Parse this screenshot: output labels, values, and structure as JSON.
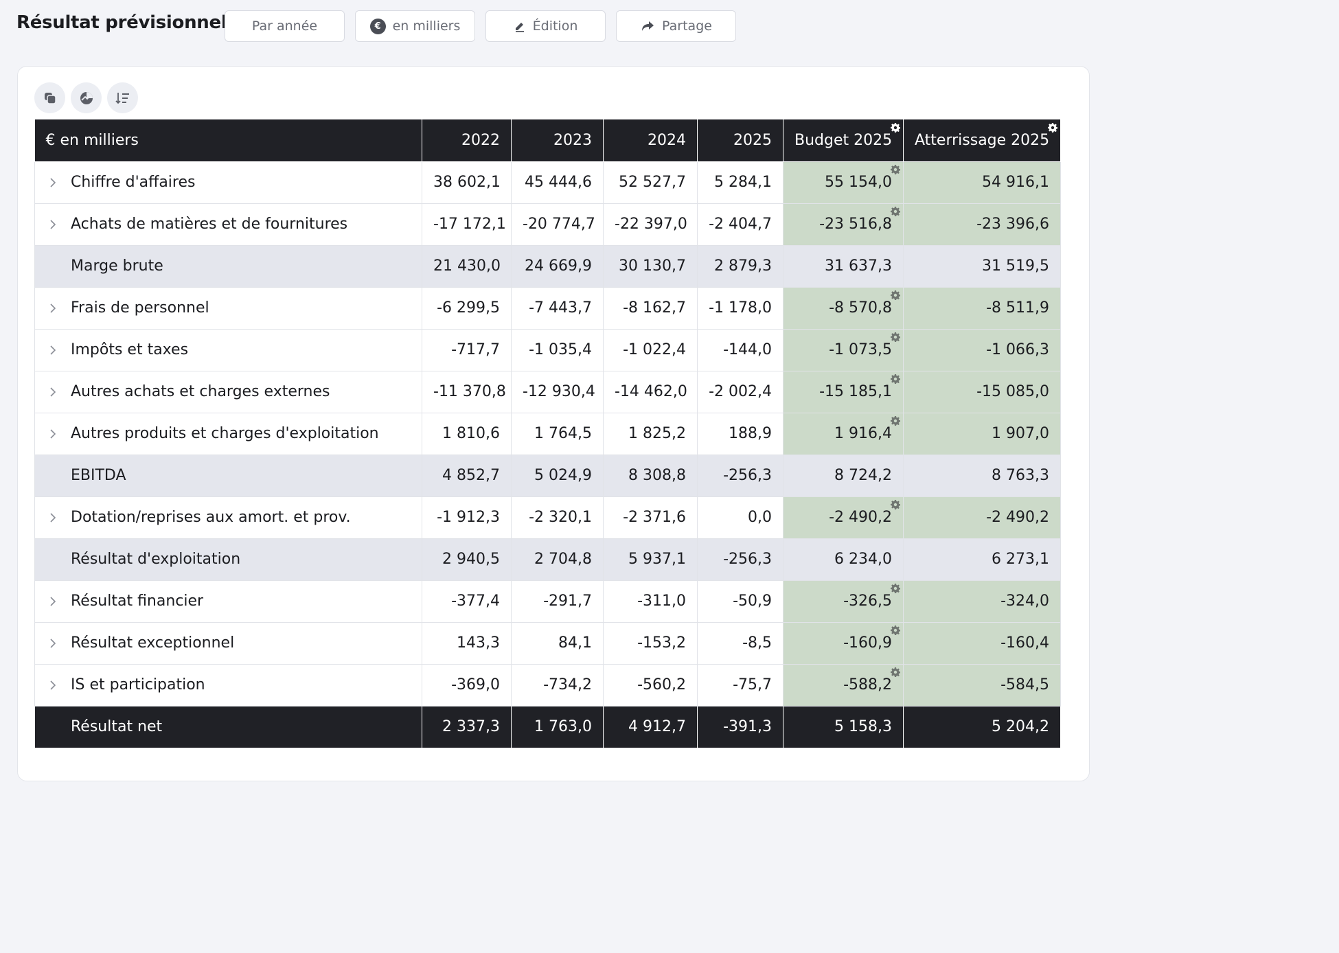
{
  "header": {
    "title": "Résultat prévisionnel",
    "buttons": {
      "period": "Par année",
      "unit": "en milliers",
      "unit_symbol": "€",
      "edit": "Édition",
      "share": "Partage"
    }
  },
  "table": {
    "corner_label": "€ en milliers",
    "columns": [
      "2022",
      "2023",
      "2024",
      "2025",
      "Budget 2025",
      "Atterrissage 2025"
    ],
    "rows": [
      {
        "label": "Chiffre d'affaires",
        "values": [
          "38 602,1",
          "45 444,6",
          "52 527,7",
          "5 284,1",
          "55 154,0",
          "54 916,1"
        ]
      },
      {
        "label": "Achats de matières et de fournitures",
        "values": [
          "-17 172,1",
          "-20 774,7",
          "-22 397,0",
          "-2 404,7",
          "-23 516,8",
          "-23 396,6"
        ]
      },
      {
        "label": "Marge brute",
        "values": [
          "21 430,0",
          "24 669,9",
          "30 130,7",
          "2 879,3",
          "31 637,3",
          "31 519,5"
        ]
      },
      {
        "label": "Frais de personnel",
        "values": [
          "-6 299,5",
          "-7 443,7",
          "-8 162,7",
          "-1 178,0",
          "-8 570,8",
          "-8 511,9"
        ]
      },
      {
        "label": "Impôts et taxes",
        "values": [
          "-717,7",
          "-1 035,4",
          "-1 022,4",
          "-144,0",
          "-1 073,5",
          "-1 066,3"
        ]
      },
      {
        "label": "Autres achats et charges externes",
        "values": [
          "-11 370,8",
          "-12 930,4",
          "-14 462,0",
          "-2 002,4",
          "-15 185,1",
          "-15 085,0"
        ]
      },
      {
        "label": "Autres produits et charges d'exploitation",
        "values": [
          "1 810,6",
          "1 764,5",
          "1 825,2",
          "188,9",
          "1 916,4",
          "1 907,0"
        ]
      },
      {
        "label": "EBITDA",
        "values": [
          "4 852,7",
          "5 024,9",
          "8 308,8",
          "-256,3",
          "8 724,2",
          "8 763,3"
        ]
      },
      {
        "label": "Dotation/reprises aux amort. et prov.",
        "values": [
          "-1 912,3",
          "-2 320,1",
          "-2 371,6",
          "0,0",
          "-2 490,2",
          "-2 490,2"
        ]
      },
      {
        "label": "Résultat d'exploitation",
        "values": [
          "2 940,5",
          "2 704,8",
          "5 937,1",
          "-256,3",
          "6 234,0",
          "6 273,1"
        ]
      },
      {
        "label": "Résultat financier",
        "values": [
          "-377,4",
          "-291,7",
          "-311,0",
          "-50,9",
          "-326,5",
          "-324,0"
        ]
      },
      {
        "label": "Résultat exceptionnel",
        "values": [
          "143,3",
          "84,1",
          "-153,2",
          "-8,5",
          "-160,9",
          "-160,4"
        ]
      },
      {
        "label": "IS et participation",
        "values": [
          "-369,0",
          "-734,2",
          "-560,2",
          "-75,7",
          "-588,2",
          "-584,5"
        ]
      },
      {
        "label": "Résultat net",
        "values": [
          "2 337,3",
          "1 763,0",
          "4 912,7",
          "-391,3",
          "5 158,3",
          "5 204,2"
        ]
      }
    ]
  }
}
